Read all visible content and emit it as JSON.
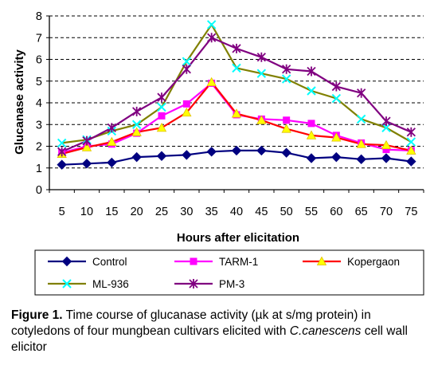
{
  "chart_data": {
    "type": "line",
    "ylabel": "Glucanase activity",
    "xlabel": "Hours after elicitation",
    "ylim": [
      0,
      8
    ],
    "yticks": [
      0,
      1,
      2,
      3,
      4,
      5,
      6,
      7,
      8
    ],
    "categories": [
      "5",
      "10",
      "15",
      "20",
      "25",
      "30",
      "35",
      "40",
      "45",
      "50",
      "55",
      "60",
      "65",
      "70",
      "75"
    ],
    "grid": "horizontal dashed",
    "legend_position": "bottom",
    "series": [
      {
        "name": "Control",
        "color": "#000080",
        "marker": "diamond",
        "values": [
          1.15,
          1.2,
          1.25,
          1.5,
          1.55,
          1.6,
          1.75,
          1.8,
          1.8,
          1.7,
          1.45,
          1.5,
          1.4,
          1.45,
          1.3
        ]
      },
      {
        "name": "TARM-1",
        "color": "#ff00ff",
        "marker": "square",
        "values": [
          1.7,
          2.0,
          2.1,
          2.6,
          3.4,
          3.95,
          4.9,
          3.45,
          3.25,
          3.2,
          3.05,
          2.5,
          2.15,
          1.85,
          1.8
        ]
      },
      {
        "name": "Kopergaon",
        "color": "#ff0000",
        "marker": "triangle",
        "values": [
          1.65,
          1.95,
          2.2,
          2.65,
          2.85,
          3.55,
          4.95,
          3.5,
          3.2,
          2.8,
          2.5,
          2.4,
          2.1,
          2.05,
          1.8
        ]
      },
      {
        "name": "ML-936",
        "color": "#808000",
        "marker": "x",
        "values": [
          2.15,
          2.3,
          2.7,
          3.0,
          3.8,
          5.9,
          7.6,
          5.6,
          5.35,
          5.1,
          4.55,
          4.2,
          3.25,
          2.85,
          2.2
        ]
      },
      {
        "name": "PM-3",
        "color": "#800080",
        "marker": "star",
        "values": [
          1.75,
          2.25,
          2.85,
          3.6,
          4.25,
          5.55,
          7.0,
          6.5,
          6.1,
          5.55,
          5.45,
          4.75,
          4.45,
          3.15,
          2.65
        ]
      }
    ],
    "caption": {
      "label": "Figure 1.",
      "text_before": " Time course of glucanase activity (µk at s/mg protein) in cotyledons of four mungbean cultivars elicited with ",
      "species": "C.canescens",
      "text_after": " cell wall elicitor"
    }
  },
  "colors": {
    "ml936_marker": "#00ffff",
    "pm3_marker": "#800080"
  }
}
